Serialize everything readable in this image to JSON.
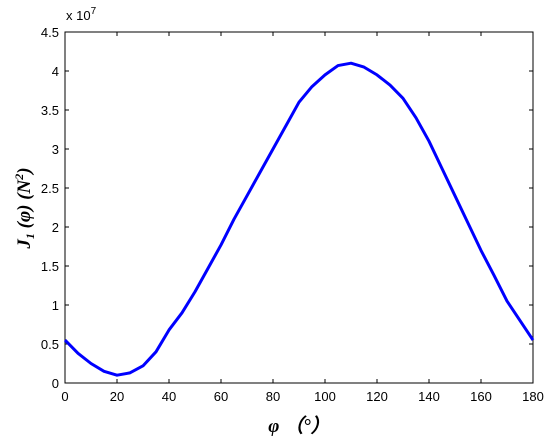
{
  "chart_data": {
    "type": "line",
    "xlabel": "φ （°）",
    "ylabel": [
      "J",
      "1",
      " (φ) (N",
      "2",
      ")"
    ],
    "y_multiplier": [
      "x 10",
      "7"
    ],
    "x": [
      0,
      5,
      10,
      15,
      20,
      25,
      30,
      35,
      40,
      45,
      50,
      55,
      60,
      65,
      70,
      75,
      80,
      85,
      90,
      95,
      100,
      105,
      110,
      115,
      120,
      125,
      130,
      135,
      140,
      145,
      150,
      155,
      160,
      165,
      170,
      175,
      180
    ],
    "series": [
      {
        "color": "#0000ff",
        "values": [
          0.55,
          0.38,
          0.25,
          0.15,
          0.1,
          0.13,
          0.22,
          0.4,
          0.68,
          0.9,
          1.17,
          1.47,
          1.77,
          2.1,
          2.4,
          2.7,
          3.0,
          3.3,
          3.6,
          3.8,
          3.95,
          4.07,
          4.1,
          4.05,
          3.95,
          3.82,
          3.65,
          3.4,
          3.1,
          2.75,
          2.4,
          2.05,
          1.7,
          1.38,
          1.05,
          0.8,
          0.55
        ]
      }
    ],
    "xlim": [
      0,
      180
    ],
    "xticks": [
      0,
      20,
      40,
      60,
      80,
      100,
      120,
      140,
      160,
      180
    ],
    "ylim": [
      0,
      4.5
    ],
    "yticks": [
      0,
      0.5,
      1,
      1.5,
      2,
      2.5,
      3,
      3.5,
      4,
      4.5
    ],
    "grid": false
  }
}
